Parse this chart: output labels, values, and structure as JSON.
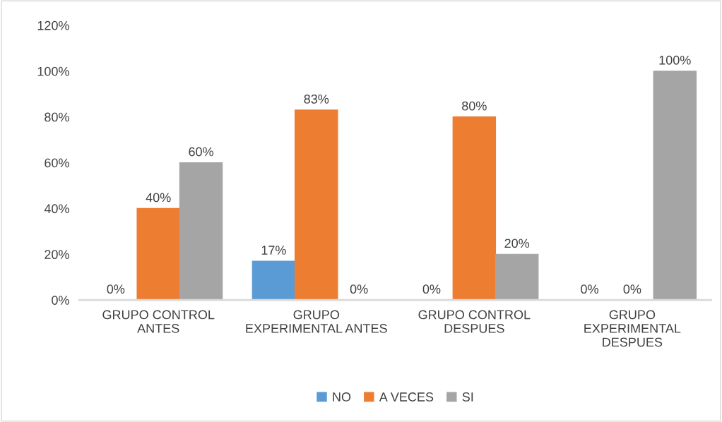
{
  "chart_data": {
    "type": "bar",
    "categories": [
      "GRUPO CONTROL\nANTES",
      "GRUPO\nEXPERIMENTAL ANTES",
      "GRUPO CONTROL\nDESPUES",
      "GRUPO\nEXPERIMENTAL\nDESPUES"
    ],
    "series": [
      {
        "name": "NO",
        "color": "#5b9bd5",
        "values": [
          0,
          17,
          0,
          0
        ],
        "value_labels": [
          "0%",
          "17%",
          "0%",
          "0%"
        ]
      },
      {
        "name": "A VECES",
        "color": "#ed7d31",
        "values": [
          40,
          83,
          80,
          0
        ],
        "value_labels": [
          "40%",
          "83%",
          "80%",
          "0%"
        ]
      },
      {
        "name": "SI",
        "color": "#a5a5a5",
        "values": [
          60,
          0,
          20,
          100
        ],
        "value_labels": [
          "60%",
          "0%",
          "20%",
          "100%"
        ]
      }
    ],
    "ylim": [
      0,
      120
    ],
    "yticks": [
      {
        "value": 0,
        "label": "0%"
      },
      {
        "value": 20,
        "label": "20%"
      },
      {
        "value": 40,
        "label": "40%"
      },
      {
        "value": 60,
        "label": "60%"
      },
      {
        "value": 80,
        "label": "80%"
      },
      {
        "value": 100,
        "label": "100%"
      },
      {
        "value": 120,
        "label": "120%"
      }
    ],
    "grid": false,
    "legend": "bottom"
  }
}
